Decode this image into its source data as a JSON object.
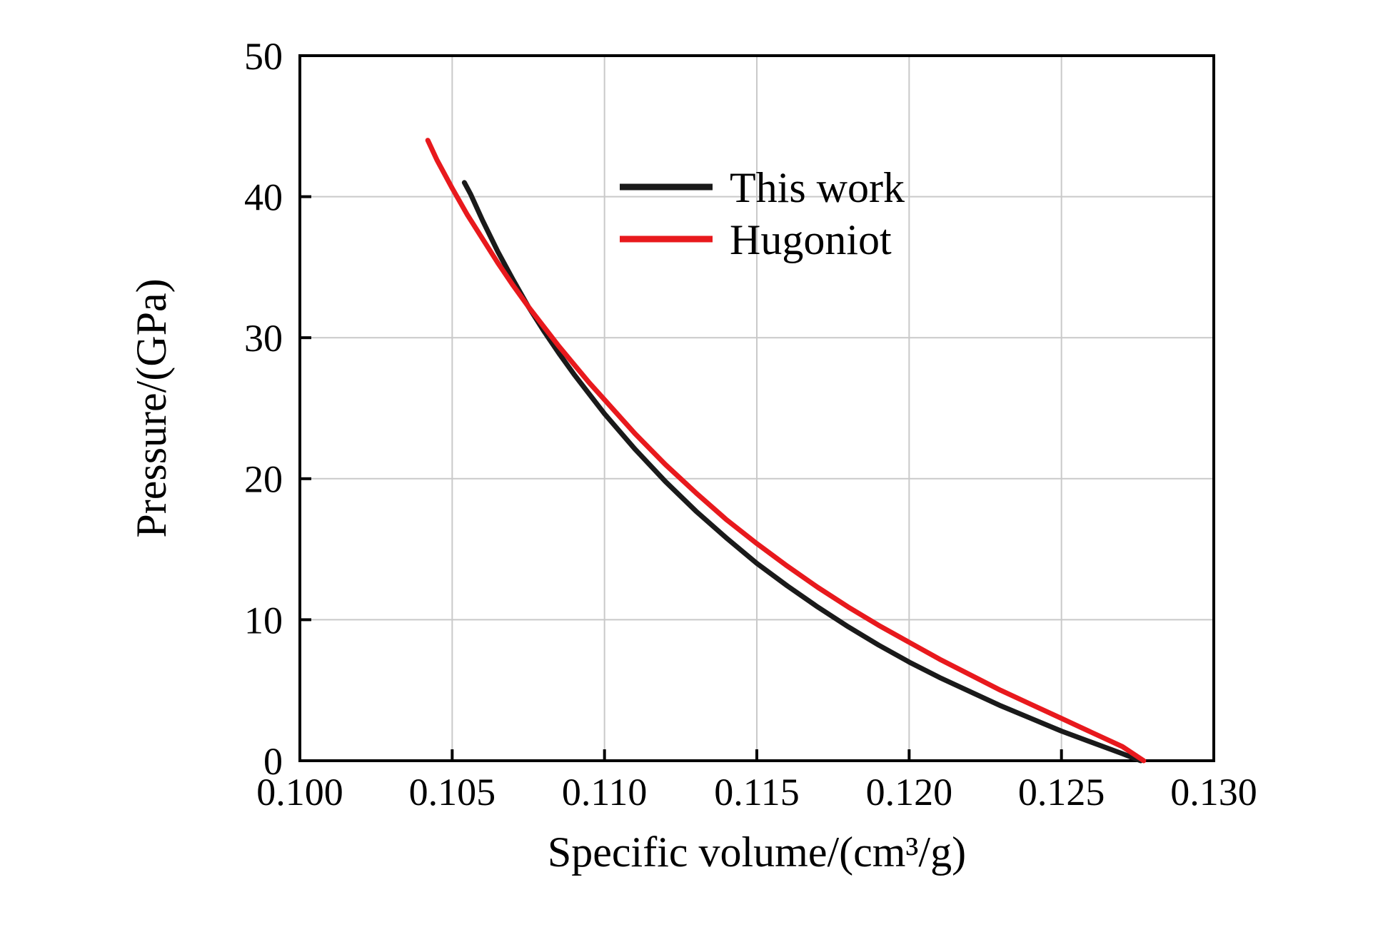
{
  "figure": {
    "background_color": "#ffffff",
    "frame_color": "#000000",
    "grid_color": "#c9c9c9"
  },
  "chart_data": {
    "type": "line",
    "title": "",
    "xlabel": "Specific volume/(cm³/g)",
    "ylabel": "Pressure/(GPa)",
    "xlim": [
      0.1,
      0.13
    ],
    "ylim": [
      0,
      50
    ],
    "x_ticks": [
      0.1,
      0.105,
      0.11,
      0.115,
      0.12,
      0.125,
      0.13
    ],
    "x_tick_labels": [
      "0.100",
      "0.105",
      "0.110",
      "0.115",
      "0.120",
      "0.125",
      "0.130"
    ],
    "y_ticks": [
      0,
      10,
      20,
      30,
      40,
      50
    ],
    "y_tick_labels": [
      "0",
      "10",
      "20",
      "30",
      "40",
      "50"
    ],
    "grid": true,
    "legend_position": "upper-center-inside",
    "series": [
      {
        "name": "This work",
        "color": "#1a1a1a",
        "points": [
          [
            0.1054,
            41.0
          ],
          [
            0.1056,
            40.2
          ],
          [
            0.106,
            38.3
          ],
          [
            0.1065,
            36.1
          ],
          [
            0.107,
            34.1
          ],
          [
            0.1075,
            32.2
          ],
          [
            0.108,
            30.5
          ],
          [
            0.1085,
            28.9
          ],
          [
            0.109,
            27.4
          ],
          [
            0.1095,
            26.0
          ],
          [
            0.11,
            24.6
          ],
          [
            0.111,
            22.1
          ],
          [
            0.112,
            19.8
          ],
          [
            0.113,
            17.7
          ],
          [
            0.114,
            15.8
          ],
          [
            0.115,
            14.0
          ],
          [
            0.116,
            12.4
          ],
          [
            0.117,
            10.9
          ],
          [
            0.118,
            9.5
          ],
          [
            0.119,
            8.2
          ],
          [
            0.12,
            7.0
          ],
          [
            0.121,
            5.9
          ],
          [
            0.122,
            4.9
          ],
          [
            0.123,
            3.9
          ],
          [
            0.124,
            3.0
          ],
          [
            0.125,
            2.1
          ],
          [
            0.126,
            1.3
          ],
          [
            0.127,
            0.5
          ],
          [
            0.1276,
            0.0
          ]
        ]
      },
      {
        "name": "Hugoniot",
        "color": "#e8191d",
        "points": [
          [
            0.1042,
            44.0
          ],
          [
            0.1045,
            42.6
          ],
          [
            0.105,
            40.6
          ],
          [
            0.1055,
            38.7
          ],
          [
            0.106,
            37.0
          ],
          [
            0.1065,
            35.3
          ],
          [
            0.107,
            33.7
          ],
          [
            0.1075,
            32.2
          ],
          [
            0.108,
            30.8
          ],
          [
            0.1085,
            29.4
          ],
          [
            0.109,
            28.1
          ],
          [
            0.1095,
            26.8
          ],
          [
            0.11,
            25.6
          ],
          [
            0.111,
            23.2
          ],
          [
            0.112,
            21.0
          ],
          [
            0.113,
            19.0
          ],
          [
            0.114,
            17.1
          ],
          [
            0.115,
            15.4
          ],
          [
            0.116,
            13.8
          ],
          [
            0.117,
            12.3
          ],
          [
            0.118,
            10.9
          ],
          [
            0.119,
            9.6
          ],
          [
            0.12,
            8.4
          ],
          [
            0.121,
            7.2
          ],
          [
            0.122,
            6.1
          ],
          [
            0.123,
            5.0
          ],
          [
            0.124,
            4.0
          ],
          [
            0.125,
            3.0
          ],
          [
            0.126,
            2.0
          ],
          [
            0.127,
            1.0
          ],
          [
            0.1277,
            0.0
          ]
        ]
      }
    ]
  }
}
